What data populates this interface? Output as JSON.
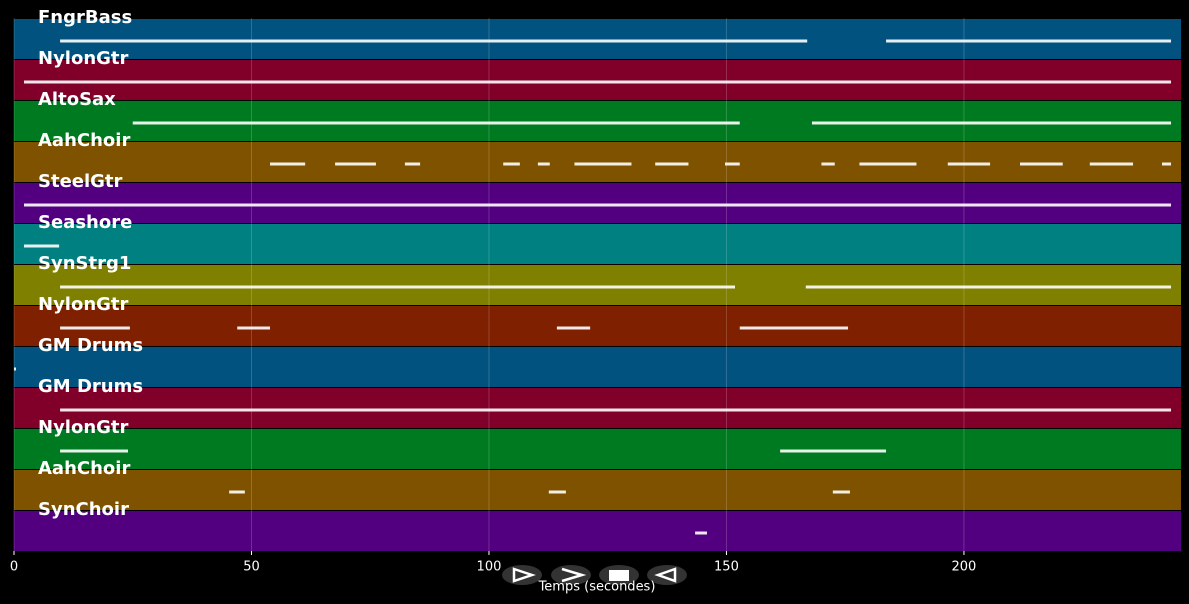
{
  "chart_data": {
    "type": "pianoroll",
    "xlabel": "Temps (secondes)",
    "xlim": [
      0,
      245.7
    ],
    "xticks": [
      0,
      50,
      100,
      150,
      200
    ],
    "grid": true,
    "tracks": [
      {
        "name": "FngrBass",
        "color": "#02527f",
        "notes": [
          [
            9.7,
            167
          ],
          [
            183.6,
            243.6
          ]
        ]
      },
      {
        "name": "NylonGtr",
        "color": "#80002a",
        "notes": [
          [
            2.1,
            243.6
          ]
        ]
      },
      {
        "name": "AltoSax",
        "color": "#007a20",
        "notes": [
          [
            25,
            152.8
          ],
          [
            168,
            243.6
          ]
        ]
      },
      {
        "name": "AahChoir",
        "color": "#7f5200",
        "notes": [
          [
            53.9,
            61.3
          ],
          [
            67.6,
            76.2
          ],
          [
            82.3,
            85.5
          ],
          [
            103,
            106.5
          ],
          [
            110.3,
            112.8
          ],
          [
            118,
            130
          ],
          [
            135,
            142
          ],
          [
            149.7,
            152.8
          ],
          [
            170,
            172.8
          ],
          [
            178,
            190
          ],
          [
            196.6,
            205.5
          ],
          [
            211.8,
            220.8
          ],
          [
            226.5,
            235.6
          ],
          [
            241.7,
            243.6
          ]
        ]
      },
      {
        "name": "SteelGtr",
        "color": "#52007f",
        "notes": [
          [
            2.1,
            243.6
          ]
        ]
      },
      {
        "name": "Seashore",
        "color": "#008080",
        "notes": [
          [
            2.1,
            9.5
          ]
        ]
      },
      {
        "name": "SynStrg1",
        "color": "#7f7f00",
        "notes": [
          [
            9.7,
            151.8
          ],
          [
            166.7,
            243.6
          ]
        ]
      },
      {
        "name": "NylonGtr",
        "color": "#7f2000",
        "notes": [
          [
            9.7,
            24.4
          ],
          [
            47,
            53.9
          ],
          [
            114.3,
            121.3
          ],
          [
            152.8,
            175.6
          ]
        ]
      },
      {
        "name": "GM Drums",
        "color": "#02527f",
        "notes": [
          [
            0,
            0.4
          ]
        ]
      },
      {
        "name": "GM Drums",
        "color": "#80002a",
        "notes": [
          [
            9.7,
            243.6
          ]
        ]
      },
      {
        "name": "NylonGtr",
        "color": "#007a20",
        "notes": [
          [
            9.7,
            24
          ],
          [
            161.3,
            183.6
          ]
        ]
      },
      {
        "name": "AahChoir",
        "color": "#7f5200",
        "notes": [
          [
            45.3,
            48.6
          ],
          [
            112.6,
            116.2
          ],
          [
            172.4,
            176
          ]
        ]
      },
      {
        "name": "SynChoir",
        "color": "#52007f",
        "notes": [
          [
            143.4,
            145.9
          ]
        ]
      }
    ]
  }
}
